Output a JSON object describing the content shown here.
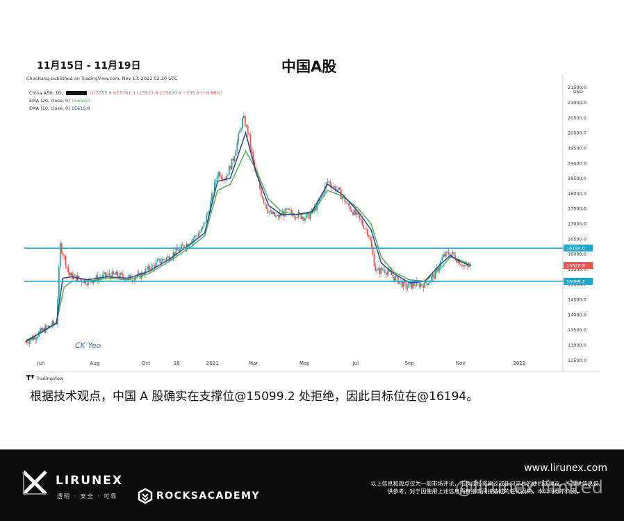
{
  "header": {
    "date_range": "11月15日 - 11月19日",
    "title": "中国A股"
  },
  "tradingview": {
    "published": "ChooKang published on TradingView.com, Nov 13, 2021 02:20 UTC",
    "symbol_label": "China A50, 1D,",
    "ohlc": {
      "o": "O15755.8",
      "h": "H15761.3",
      "l": "L15517.8",
      "c": "C15620.8",
      "chg": "−135.0 (−0.86%)"
    },
    "ema20_label": "EMA (20, close, 0)",
    "ema20_value": "15652.0",
    "ema10_label": "EMA (10, close, 0)",
    "ema10_value": "15615.8",
    "annotation": "CK Yeo",
    "brand": "TradingView",
    "currency": "USD",
    "resistance_label": "16194.0",
    "price_label": "15620.8",
    "support_label": "15099.2"
  },
  "caption": "根据技术观点，中国 A 股确实在支撑位@15099.2 处拒绝，因此目标位在@16194。",
  "footer": {
    "brand": "LIRUNEX",
    "tagline": "透明 · 安全 · 可靠",
    "academy": "ROCKSACADEMY",
    "website": "www.lirunex.com",
    "disclaimer": "以上信息和观点仅为一般市场评论，不构成投资建议或任何交易的要约或建议。所提供信息仅供参考，对于因使用上述信息而直接或间接造成的任何损失，本公司概不负责。",
    "watermark": "@lirunex limited"
  },
  "colors": {
    "up": "#26a69a",
    "down": "#ef5350",
    "ema20": "#4caf50",
    "ema10": "#2c3e91",
    "level_line": "#1fa8c9",
    "price_label": "#ef5350"
  },
  "chart_data": {
    "type": "candlestick",
    "instrument": "China A50, 1D",
    "x_ticks": [
      "Jun",
      "Aug",
      "Oct",
      "16",
      "2021",
      "Mar",
      "May",
      "Jul",
      "Sep",
      "Nov",
      "2022"
    ],
    "x_tick_pos": [
      0.6,
      2.7,
      4.7,
      5.9,
      7.3,
      8.9,
      10.9,
      12.9,
      15.0,
      17.0,
      19.3
    ],
    "y_ticks": [
      12500,
      13000,
      13500,
      14000,
      14500,
      15000,
      15500,
      16000,
      16500,
      17000,
      17500,
      18000,
      18500,
      19000,
      19500,
      20000,
      20500,
      21000,
      21500
    ],
    "ylim": [
      12300,
      21700
    ],
    "xlim": [
      0,
      21
    ],
    "horizontal_levels": [
      16194.0,
      15099.2
    ],
    "last_price": 15620.8,
    "price_path": [
      [
        0.0,
        13100
      ],
      [
        0.3,
        13250
      ],
      [
        0.6,
        13450
      ],
      [
        0.9,
        13600
      ],
      [
        1.2,
        13750
      ],
      [
        1.35,
        16300
      ],
      [
        1.5,
        15900
      ],
      [
        1.7,
        15300
      ],
      [
        2.0,
        15200
      ],
      [
        2.4,
        15100
      ],
      [
        2.8,
        15200
      ],
      [
        3.2,
        15300
      ],
      [
        3.6,
        15300
      ],
      [
        4.0,
        15200
      ],
      [
        4.4,
        15250
      ],
      [
        4.8,
        15500
      ],
      [
        5.2,
        15750
      ],
      [
        5.6,
        15900
      ],
      [
        6.0,
        16150
      ],
      [
        6.4,
        16400
      ],
      [
        6.9,
        16800
      ],
      [
        7.2,
        17600
      ],
      [
        7.5,
        18700
      ],
      [
        7.8,
        18500
      ],
      [
        8.1,
        19100
      ],
      [
        8.5,
        20500
      ],
      [
        8.7,
        20000
      ],
      [
        8.9,
        19000
      ],
      [
        9.2,
        18000
      ],
      [
        9.5,
        17400
      ],
      [
        9.8,
        17200
      ],
      [
        10.2,
        17400
      ],
      [
        10.6,
        17300
      ],
      [
        11.0,
        17200
      ],
      [
        11.4,
        17600
      ],
      [
        11.8,
        18400
      ],
      [
        12.2,
        18100
      ],
      [
        12.6,
        17600
      ],
      [
        13.0,
        17200
      ],
      [
        13.4,
        16700
      ],
      [
        13.7,
        15400
      ],
      [
        14.0,
        15500
      ],
      [
        14.3,
        15300
      ],
      [
        14.6,
        15100
      ],
      [
        14.9,
        14900
      ],
      [
        15.2,
        15000
      ],
      [
        15.6,
        15000
      ],
      [
        16.0,
        15300
      ],
      [
        16.3,
        15900
      ],
      [
        16.6,
        16050
      ],
      [
        16.9,
        15800
      ],
      [
        17.2,
        15550
      ],
      [
        17.4,
        15620
      ]
    ],
    "ema20_path": [
      [
        0.0,
        13150
      ],
      [
        0.6,
        13400
      ],
      [
        1.2,
        13700
      ],
      [
        1.5,
        14900
      ],
      [
        1.8,
        15100
      ],
      [
        2.4,
        15100
      ],
      [
        3.2,
        15200
      ],
      [
        4.0,
        15150
      ],
      [
        4.8,
        15350
      ],
      [
        5.6,
        15750
      ],
      [
        6.4,
        16200
      ],
      [
        7.0,
        16600
      ],
      [
        7.5,
        18100
      ],
      [
        8.0,
        18300
      ],
      [
        8.6,
        19400
      ],
      [
        9.0,
        18800
      ],
      [
        9.5,
        17800
      ],
      [
        10.0,
        17400
      ],
      [
        10.6,
        17300
      ],
      [
        11.2,
        17350
      ],
      [
        11.8,
        18100
      ],
      [
        12.4,
        17900
      ],
      [
        13.0,
        17500
      ],
      [
        13.5,
        17000
      ],
      [
        13.9,
        15900
      ],
      [
        14.4,
        15400
      ],
      [
        15.0,
        15150
      ],
      [
        15.6,
        15100
      ],
      [
        16.2,
        15500
      ],
      [
        16.6,
        15900
      ],
      [
        17.0,
        15800
      ],
      [
        17.4,
        15652
      ]
    ],
    "ema10_path": [
      [
        0.0,
        13100
      ],
      [
        0.6,
        13420
      ],
      [
        1.2,
        13720
      ],
      [
        1.45,
        15200
      ],
      [
        1.8,
        15250
      ],
      [
        2.4,
        15150
      ],
      [
        3.2,
        15250
      ],
      [
        4.0,
        15200
      ],
      [
        4.8,
        15420
      ],
      [
        5.6,
        15820
      ],
      [
        6.4,
        16300
      ],
      [
        7.0,
        16700
      ],
      [
        7.5,
        18400
      ],
      [
        8.0,
        18500
      ],
      [
        8.6,
        20000
      ],
      [
        9.0,
        18700
      ],
      [
        9.5,
        17600
      ],
      [
        10.0,
        17300
      ],
      [
        10.6,
        17300
      ],
      [
        11.2,
        17400
      ],
      [
        11.8,
        18300
      ],
      [
        12.4,
        17950
      ],
      [
        13.0,
        17400
      ],
      [
        13.5,
        16800
      ],
      [
        13.9,
        15700
      ],
      [
        14.4,
        15350
      ],
      [
        15.0,
        15050
      ],
      [
        15.6,
        15100
      ],
      [
        16.2,
        15650
      ],
      [
        16.6,
        15950
      ],
      [
        17.0,
        15750
      ],
      [
        17.4,
        15615
      ]
    ]
  }
}
